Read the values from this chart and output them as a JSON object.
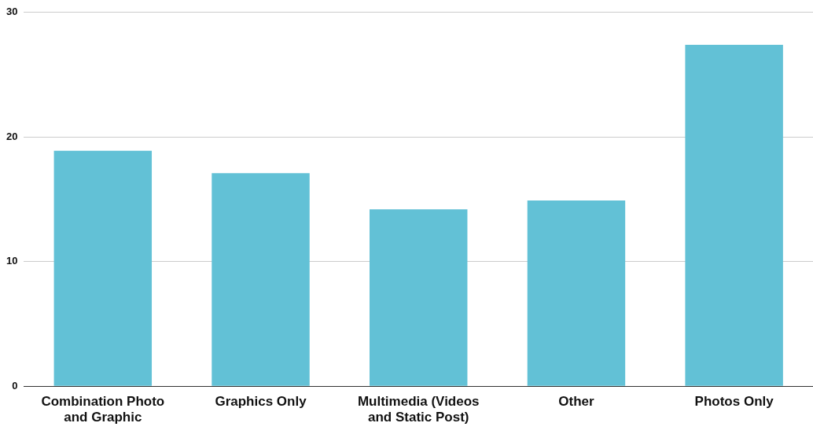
{
  "chart_data": {
    "type": "bar",
    "categories": [
      "Combination Photo and Graphic",
      "Graphics Only",
      "Multimedia (Videos and Static Post)",
      "Other",
      "Photos Only"
    ],
    "values": [
      18.9,
      17.1,
      14.2,
      14.9,
      27.4
    ],
    "color": "#62c1d6",
    "ylim": [
      0,
      30
    ],
    "yticks": [
      0,
      10,
      20,
      30
    ],
    "grid": "y",
    "legend": false
  }
}
